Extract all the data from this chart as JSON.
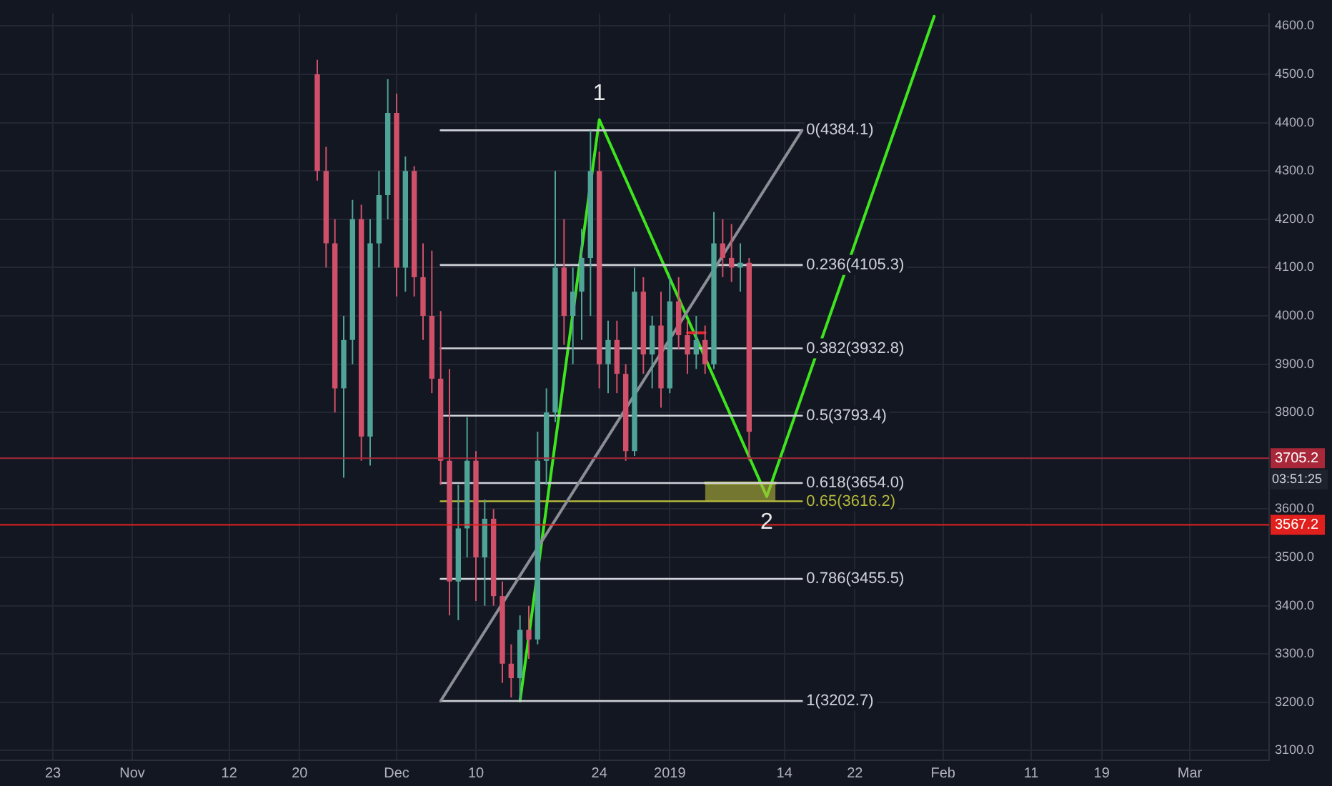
{
  "chart_data": {
    "type": "candlestick",
    "x": [
      "2018-11-22",
      "2018-11-23",
      "2018-11-24",
      "2018-11-25",
      "2018-11-26",
      "2018-11-27",
      "2018-11-28",
      "2018-11-29",
      "2018-11-30",
      "2018-12-01",
      "2018-12-02",
      "2018-12-03",
      "2018-12-04",
      "2018-12-05",
      "2018-12-06",
      "2018-12-07",
      "2018-12-08",
      "2018-12-09",
      "2018-12-10",
      "2018-12-11",
      "2018-12-12",
      "2018-12-13",
      "2018-12-14",
      "2018-12-15",
      "2018-12-16",
      "2018-12-17",
      "2018-12-18",
      "2018-12-19",
      "2018-12-20",
      "2018-12-21",
      "2018-12-22",
      "2018-12-23",
      "2018-12-24",
      "2018-12-25",
      "2018-12-26",
      "2018-12-27",
      "2018-12-28",
      "2018-12-29",
      "2018-12-30",
      "2018-12-31",
      "2019-01-01",
      "2019-01-02",
      "2019-01-03",
      "2019-01-04",
      "2019-01-05",
      "2019-01-06",
      "2019-01-07",
      "2019-01-08",
      "2019-01-09",
      "2019-01-10"
    ],
    "ohlc": [
      [
        4500,
        4530,
        4280,
        4300
      ],
      [
        4300,
        4350,
        4100,
        4150
      ],
      [
        4150,
        4200,
        3800,
        3850
      ],
      [
        3850,
        4000,
        3665,
        3950
      ],
      [
        3950,
        4240,
        3900,
        4200
      ],
      [
        4200,
        4230,
        3700,
        3750
      ],
      [
        3750,
        4200,
        3690,
        4150
      ],
      [
        4150,
        4300,
        4100,
        4250
      ],
      [
        4250,
        4490,
        4200,
        4420
      ],
      [
        4420,
        4460,
        4040,
        4100
      ],
      [
        4100,
        4330,
        4050,
        4300
      ],
      [
        4300,
        4310,
        4040,
        4080
      ],
      [
        4080,
        4150,
        3950,
        4000
      ],
      [
        4000,
        4135,
        3840,
        3870
      ],
      [
        3870,
        4010,
        3650,
        3700
      ],
      [
        3700,
        3890,
        3380,
        3450
      ],
      [
        3450,
        3650,
        3370,
        3560
      ],
      [
        3560,
        3790,
        3500,
        3700
      ],
      [
        3700,
        3720,
        3410,
        3500
      ],
      [
        3500,
        3620,
        3400,
        3580
      ],
      [
        3580,
        3600,
        3400,
        3420
      ],
      [
        3420,
        3450,
        3240,
        3280
      ],
      [
        3280,
        3320,
        3210,
        3250
      ],
      [
        3250,
        3380,
        3205,
        3350
      ],
      [
        3350,
        3400,
        3290,
        3330
      ],
      [
        3330,
        3760,
        3320,
        3700
      ],
      [
        3700,
        3850,
        3650,
        3800
      ],
      [
        3800,
        4300,
        3780,
        4100
      ],
      [
        4100,
        4200,
        3940,
        4000
      ],
      [
        4000,
        4100,
        3900,
        4050
      ],
      [
        4050,
        4180,
        3950,
        4120
      ],
      [
        4120,
        4384,
        4000,
        4300
      ],
      [
        4300,
        4340,
        3850,
        3900
      ],
      [
        3900,
        3990,
        3840,
        3950
      ],
      [
        3950,
        3990,
        3840,
        3880
      ],
      [
        3880,
        3900,
        3700,
        3720
      ],
      [
        3720,
        4100,
        3710,
        4050
      ],
      [
        4050,
        4080,
        3880,
        3920
      ],
      [
        3920,
        4000,
        3850,
        3980
      ],
      [
        3980,
        4050,
        3810,
        3850
      ],
      [
        3850,
        4080,
        3840,
        4030
      ],
      [
        4030,
        4080,
        3930,
        3960
      ],
      [
        3960,
        3990,
        3880,
        3920
      ],
      [
        3920,
        4000,
        3890,
        3950
      ],
      [
        3950,
        3980,
        3880,
        3900
      ],
      [
        3900,
        4215,
        3890,
        4150
      ],
      [
        4150,
        4200,
        4080,
        4120
      ],
      [
        4120,
        4190,
        4070,
        4100
      ],
      [
        4100,
        4150,
        4050,
        4110
      ],
      [
        4110,
        4120,
        3700,
        3760
      ]
    ],
    "colors": [
      "#d0506a",
      "#d0506a",
      "#d0506a",
      "#4fa397",
      "#4fa397",
      "#d0506a",
      "#4fa397",
      "#4fa397",
      "#4fa397",
      "#d0506a",
      "#4fa397",
      "#d0506a",
      "#d0506a",
      "#d0506a",
      "#d0506a",
      "#d0506a",
      "#4fa397",
      "#4fa397",
      "#d0506a",
      "#4fa397",
      "#d0506a",
      "#d0506a",
      "#d0506a",
      "#4fa397",
      "#d0506a",
      "#4fa397",
      "#4fa397",
      "#4fa397",
      "#d0506a",
      "#4fa397",
      "#4fa397",
      "#4fa397",
      "#d0506a",
      "#4fa397",
      "#d0506a",
      "#d0506a",
      "#4fa397",
      "#d0506a",
      "#4fa397",
      "#d0506a",
      "#4fa397",
      "#d0506a",
      "#d0506a",
      "#4fa397",
      "#d0506a",
      "#4fa397",
      "#d0506a",
      "#d0506a",
      "#4fa397",
      "#d0506a"
    ],
    "series": [
      {
        "type": "line",
        "color": "#8a8d94",
        "x": [
          "2018-12-06",
          "2019-01-16"
        ],
        "values": [
          3202.7,
          4384.1
        ]
      },
      {
        "type": "line",
        "name": "0(4384.1)",
        "color": "#cfd2d8",
        "x": [
          "2018-12-06",
          "2019-01-16"
        ],
        "values": [
          4384.1,
          4384.1
        ]
      },
      {
        "type": "line",
        "name": "0.236(4105.3)",
        "color": "#cfd2d8",
        "x": [
          "2018-12-06",
          "2019-01-16"
        ],
        "values": [
          4105.3,
          4105.3
        ]
      },
      {
        "type": "line",
        "name": "0.382(3932.8)",
        "color": "#cfd2d8",
        "x": [
          "2018-12-06",
          "2019-01-16"
        ],
        "values": [
          3932.8,
          3932.8
        ]
      },
      {
        "type": "line",
        "name": "0.5(3793.4)",
        "color": "#cfd2d8",
        "x": [
          "2018-12-06",
          "2019-01-16"
        ],
        "values": [
          3793.4,
          3793.4
        ]
      },
      {
        "type": "line",
        "name": "0.618(3654.0)",
        "color": "#cfd2d8",
        "x": [
          "2018-12-06",
          "2019-01-16"
        ],
        "values": [
          3654.0,
          3654.0
        ]
      },
      {
        "type": "line",
        "name": "0.65(3616.2)",
        "color": "#b5b83a",
        "x": [
          "2018-12-06",
          "2019-01-16"
        ],
        "values": [
          3616.2,
          3616.2
        ]
      },
      {
        "type": "line",
        "name": "0.786(3455.5)",
        "color": "#cfd2d8",
        "x": [
          "2018-12-06",
          "2019-01-16"
        ],
        "values": [
          3455.5,
          3455.5
        ]
      },
      {
        "type": "line",
        "name": "1(3202.7)",
        "color": "#cfd2d8",
        "x": [
          "2018-12-06",
          "2019-01-16"
        ],
        "values": [
          3202.7,
          3202.7
        ]
      },
      {
        "type": "line",
        "color": "#b5b83a",
        "x": [
          "2019-01-05",
          "2019-01-13"
        ],
        "values": [
          3654.0,
          3654.0
        ],
        "lower": [
          3616.2,
          3616.2
        ],
        "upper": [
          3654.0,
          3654.0
        ]
      },
      {
        "type": "line",
        "color": "#e8262a",
        "x": [
          "2019-01-03",
          "2019-01-05"
        ],
        "values": [
          3965,
          3965
        ]
      },
      {
        "type": "line",
        "color": "#3ee51f",
        "x": [
          "2018-12-15",
          "2018-12-24",
          "2019-01-12",
          "2019-01-31"
        ],
        "values": [
          3202.7,
          4406,
          3626,
          4620
        ]
      }
    ],
    "ref_lines": [
      {
        "axis": "y",
        "value": 3705.2,
        "label": "3705.2",
        "color": "#a8283a"
      },
      {
        "axis": "y",
        "value": 3567.2,
        "label": "3567.2",
        "color": "#e0201c"
      }
    ],
    "annotations": [
      "03:51:25",
      {
        "text": "1",
        "x": "2018-12-24",
        "y": 4406
      },
      {
        "text": "2",
        "x": "2019-01-12",
        "y": 3626
      }
    ],
    "xlim": [
      "2018-10-17",
      "2019-03-10"
    ],
    "xticks": [
      {
        "value": "2018-10-23",
        "label": "23"
      },
      {
        "value": "2018-11-01",
        "label": "Nov"
      },
      {
        "value": "2018-11-12",
        "label": "12"
      },
      {
        "value": "2018-11-20",
        "label": "20"
      },
      {
        "value": "2018-12-01",
        "label": "Dec"
      },
      {
        "value": "2018-12-10",
        "label": "10"
      },
      {
        "value": "2018-12-24",
        "label": "24"
      },
      {
        "value": "2019-01-01",
        "label": "2019"
      },
      {
        "value": "2019-01-14",
        "label": "14"
      },
      {
        "value": "2019-01-22",
        "label": "22"
      },
      {
        "value": "2019-02-01",
        "label": "Feb"
      },
      {
        "value": "2019-02-11",
        "label": "11"
      },
      {
        "value": "2019-02-19",
        "label": "19"
      },
      {
        "value": "2019-03-01",
        "label": "Mar"
      }
    ],
    "ylim": [
      3080,
      4626
    ],
    "yticks": [
      {
        "value": 3100,
        "label": "3100.0"
      },
      {
        "value": 3200,
        "label": "3200.0"
      },
      {
        "value": 3300,
        "label": "3300.0"
      },
      {
        "value": 3400,
        "label": "3400.0"
      },
      {
        "value": 3500,
        "label": "3500.0"
      },
      {
        "value": 3600,
        "label": "3600.0"
      },
      {
        "value": 3800,
        "label": "3800.0"
      },
      {
        "value": 3900,
        "label": "3900.0"
      },
      {
        "value": 4000,
        "label": "4000.0"
      },
      {
        "value": 4100,
        "label": "4100.0"
      },
      {
        "value": 4200,
        "label": "4200.0"
      },
      {
        "value": 4300,
        "label": "4300.0"
      },
      {
        "value": 4400,
        "label": "4400.0"
      },
      {
        "value": 4500,
        "label": "4500.0"
      },
      {
        "value": 4600,
        "label": "4600.0"
      }
    ],
    "grid": true,
    "legend": false
  }
}
